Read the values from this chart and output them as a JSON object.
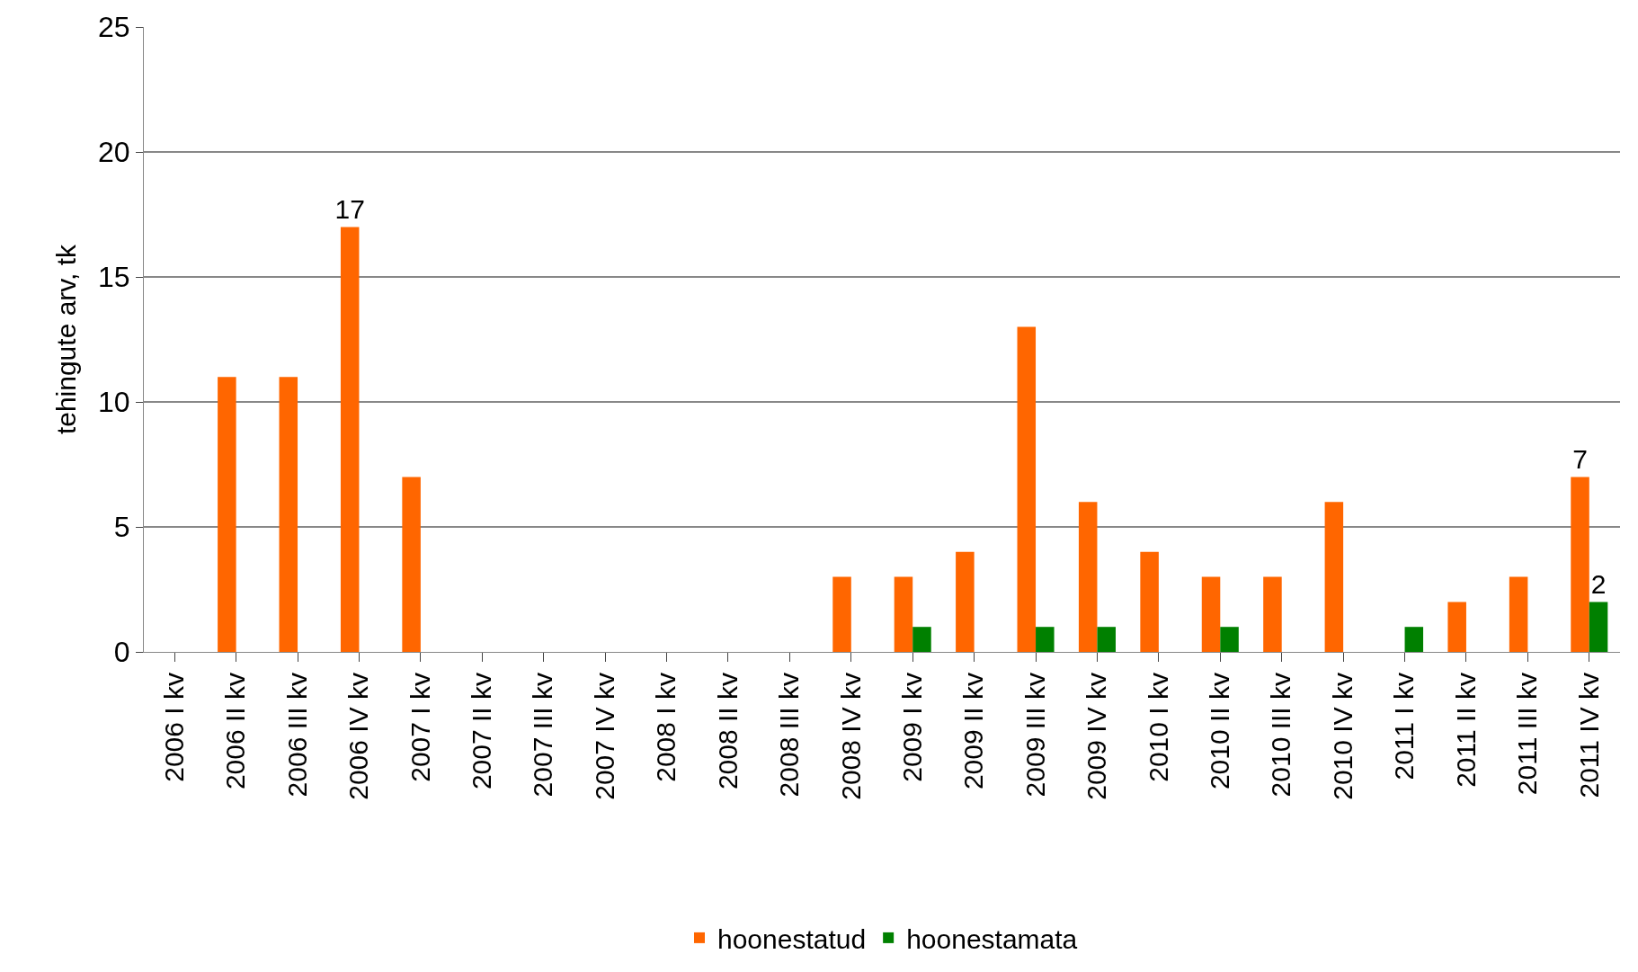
{
  "chart_data": {
    "type": "bar",
    "ylabel": "tehingute arv, tk",
    "categories": [
      "2006 I kv",
      "2006 II kv",
      "2006 III kv",
      "2006 IV kv",
      "2007 I kv",
      "2007 II kv",
      "2007 III kv",
      "2007 IV kv",
      "2008 I kv",
      "2008 II kv",
      "2008 III kv",
      "2008 IV kv",
      "2009 I kv",
      "2009 II kv",
      "2009 III kv",
      "2009 IV kv",
      "2010 I kv",
      "2010 II kv",
      "2010 III kv",
      "2010 IV kv",
      "2011 I kv",
      "2011 II kv",
      "2011 III kv",
      "2011 IV kv"
    ],
    "series": [
      {
        "name": "hoonestatud",
        "color": "#ff6600",
        "values": [
          0,
          11,
          11,
          17,
          7,
          0,
          0,
          0,
          0,
          0,
          0,
          3,
          3,
          4,
          13,
          6,
          4,
          3,
          3,
          6,
          0,
          2,
          3,
          7
        ],
        "value_labels": [
          null,
          null,
          null,
          "17",
          null,
          null,
          null,
          null,
          null,
          null,
          null,
          null,
          null,
          null,
          null,
          null,
          null,
          null,
          null,
          null,
          null,
          null,
          null,
          "7"
        ]
      },
      {
        "name": "hoonestamata",
        "color": "#008000",
        "values": [
          0,
          0,
          0,
          0,
          0,
          0,
          0,
          0,
          0,
          0,
          0,
          0,
          1,
          0,
          1,
          1,
          0,
          1,
          0,
          0,
          1,
          0,
          0,
          2
        ],
        "value_labels": [
          null,
          null,
          null,
          null,
          null,
          null,
          null,
          null,
          null,
          null,
          null,
          null,
          null,
          null,
          null,
          null,
          null,
          null,
          null,
          null,
          null,
          null,
          null,
          "2"
        ]
      }
    ],
    "ylim": [
      0,
      25
    ],
    "yticks": [
      0,
      5,
      10,
      15,
      20,
      25
    ],
    "grid": "y",
    "legend": "bottom"
  }
}
